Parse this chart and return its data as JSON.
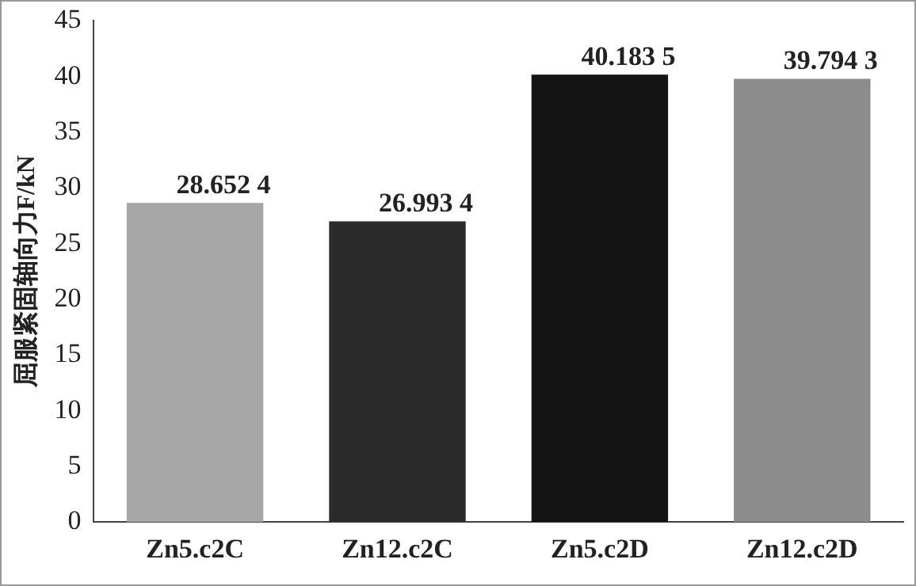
{
  "chart_data": {
    "type": "bar",
    "ylabel": "屈服紧固轴向力F/kN",
    "categories": [
      "Zn5.c2C",
      "Zn12.c2C",
      "Zn5.c2D",
      "Zn12.c2D"
    ],
    "values": [
      28.6524,
      26.9934,
      40.1835,
      39.7943
    ],
    "colors": [
      "#a6a6a6",
      "#2b2b2b",
      "#141414",
      "#8c8c8c"
    ],
    "value_labels": [
      "28.652 4",
      "26.993 4",
      "40.183 5",
      "39.794 3"
    ],
    "ylim": [
      0,
      45
    ],
    "yticks": [
      0,
      5,
      10,
      15,
      20,
      25,
      30,
      35,
      40,
      45
    ],
    "grid": false,
    "legend": false
  }
}
